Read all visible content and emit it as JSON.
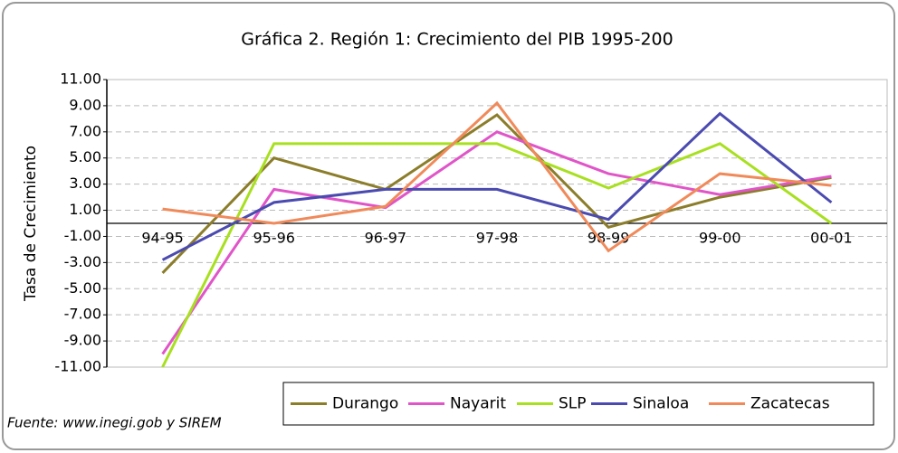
{
  "chart_data": {
    "type": "line",
    "title": "Gráfica 2. Región 1: Crecimiento del PIB 1995-200",
    "y_label": "Tasa de Crecimiento",
    "source": "Fuente: www.inegi.gob y SIREM",
    "categories": [
      "94-95",
      "95-96",
      "96-97",
      "97-98",
      "98-99",
      "99-00",
      "00-01"
    ],
    "series": [
      {
        "name": "Durango",
        "color": "#8b7d2a",
        "values": [
          -3.8,
          5.0,
          2.6,
          8.3,
          -0.3,
          2.0,
          3.5
        ]
      },
      {
        "name": "Nayarit",
        "color": "#e055c8",
        "values": [
          -10.0,
          2.6,
          1.2,
          7.0,
          3.8,
          2.2,
          3.6
        ]
      },
      {
        "name": "SLP",
        "color": "#a8e020",
        "values": [
          -11.0,
          6.1,
          6.1,
          6.1,
          2.7,
          6.1,
          0.0
        ]
      },
      {
        "name": "Sinaloa",
        "color": "#4a4ab0",
        "values": [
          -2.8,
          1.6,
          2.6,
          2.6,
          0.3,
          8.4,
          1.6
        ]
      },
      {
        "name": "Zacatecas",
        "color": "#f08a5a",
        "values": [
          1.1,
          0.0,
          1.3,
          9.2,
          -2.1,
          3.8,
          2.9
        ]
      }
    ],
    "ylim": [
      -11,
      11
    ],
    "yticks": [
      {
        "value": -11,
        "label": "-11.00"
      },
      {
        "value": -9,
        "label": "-9.00"
      },
      {
        "value": -7,
        "label": "-7.00"
      },
      {
        "value": -5,
        "label": "-5.00"
      },
      {
        "value": -3,
        "label": "-3.00"
      },
      {
        "value": -1,
        "label": "-1.00"
      },
      {
        "value": 1,
        "label": "1.00"
      },
      {
        "value": 3,
        "label": "3.00"
      },
      {
        "value": 5,
        "label": "5.00"
      },
      {
        "value": 7,
        "label": "7.00"
      },
      {
        "value": 9,
        "label": "9.00"
      },
      {
        "value": 11,
        "label": "11.00"
      }
    ],
    "grid": true,
    "legend": "bottom"
  }
}
